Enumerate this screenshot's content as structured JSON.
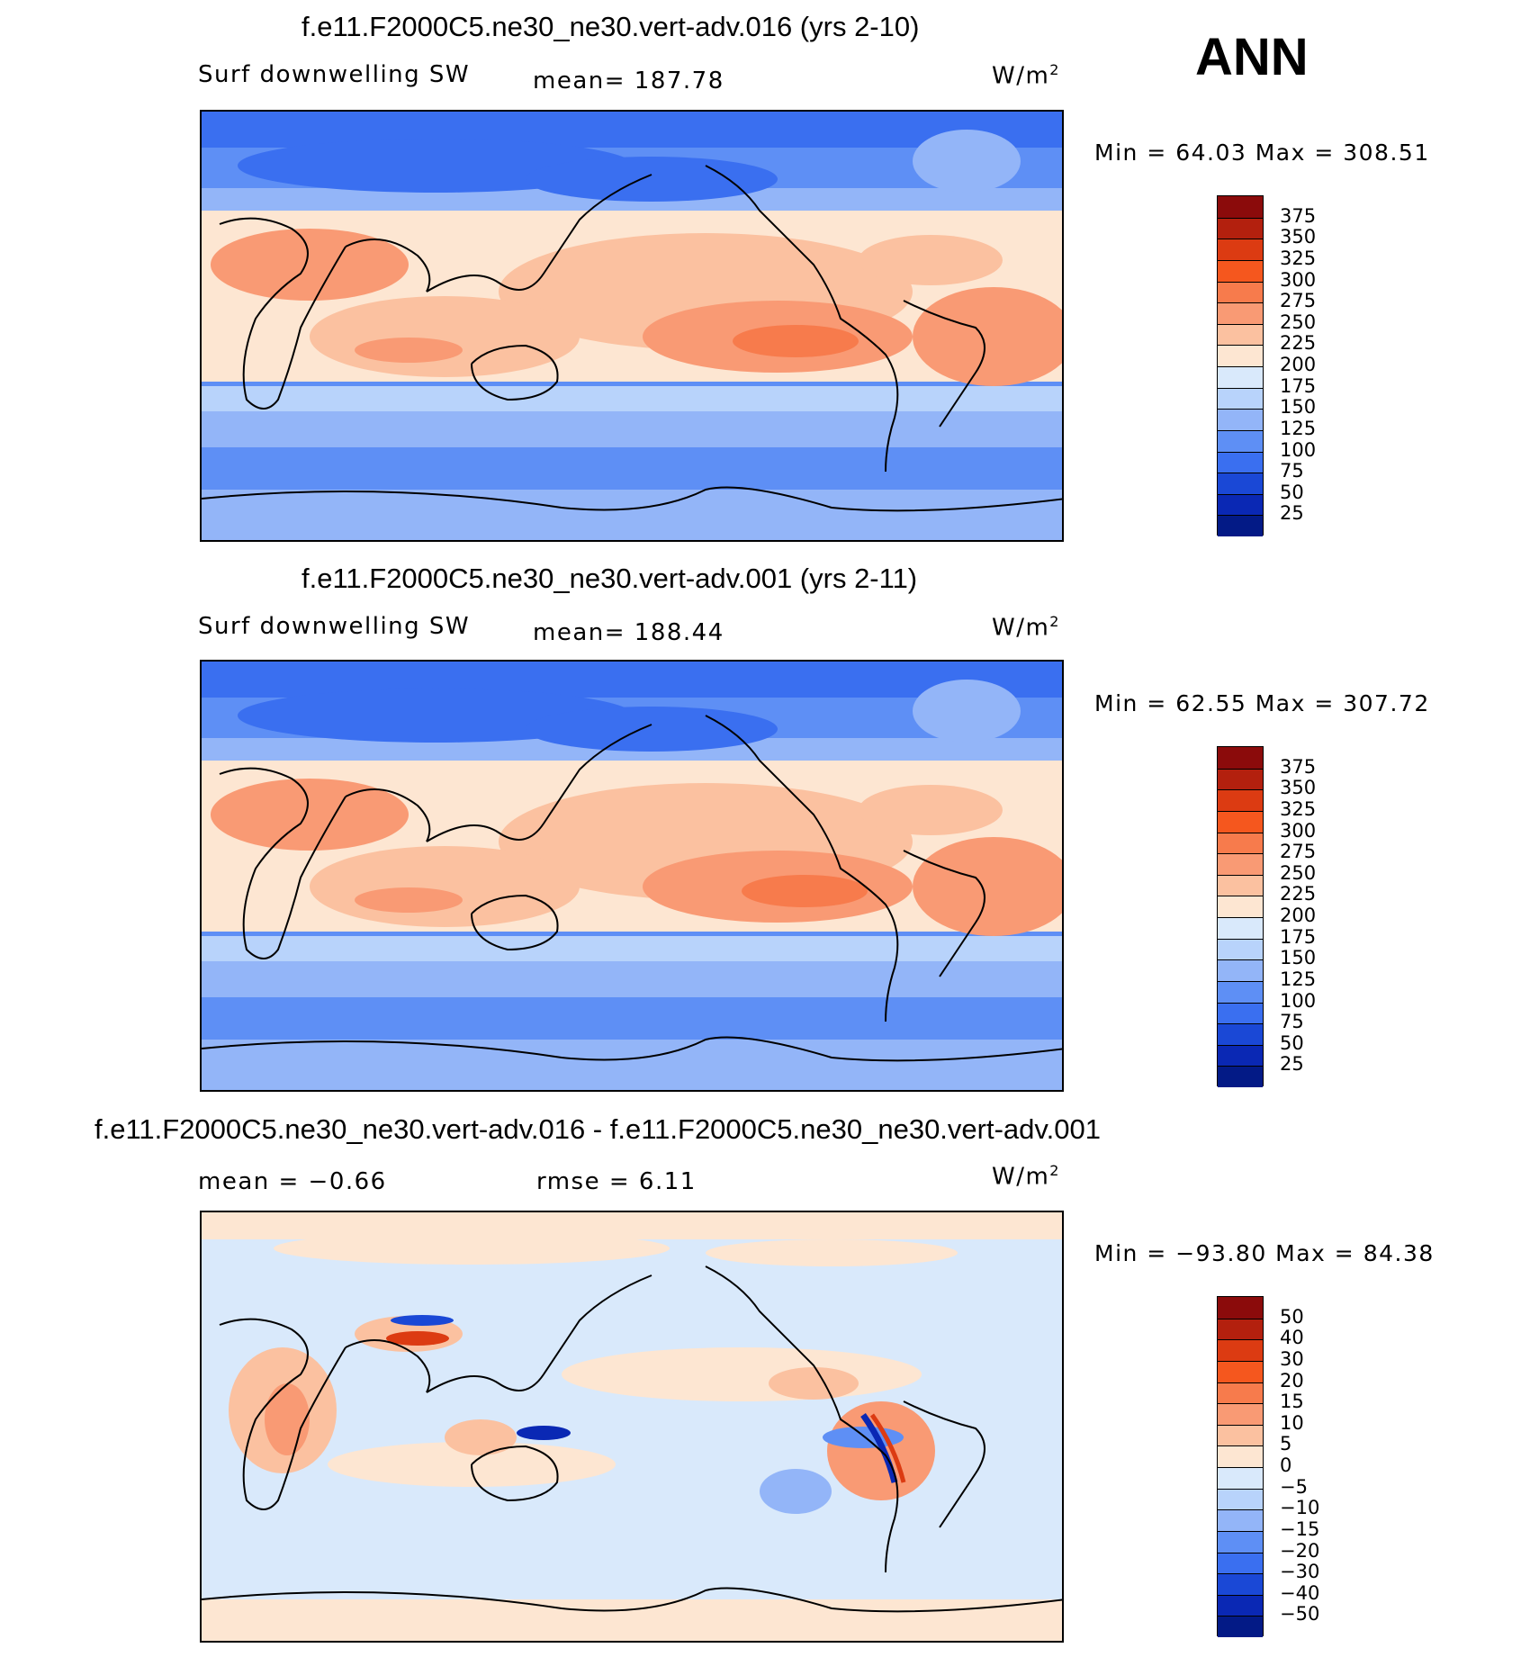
{
  "season": "ANN",
  "panels": [
    {
      "title": "f.e11.F2000C5.ne30_ne30.vert-adv.016 (yrs 2-10)",
      "variable": "Surf downwelling SW",
      "stat1": "mean=  187.78",
      "units": "W/m",
      "units_sup": "2",
      "minmax": "Min =   64.03  Max =  308.51"
    },
    {
      "title": "f.e11.F2000C5.ne30_ne30.vert-adv.001 (yrs 2-11)",
      "variable": "Surf downwelling SW",
      "stat1": "mean=  188.44",
      "units": "W/m",
      "units_sup": "2",
      "minmax": "Min =   62.55  Max =  307.72"
    },
    {
      "title": "f.e11.F2000C5.ne30_ne30.vert-adv.016 - f.e11.F2000C5.ne30_ne30.vert-adv.001",
      "variable": "mean =   −0.66",
      "stat1": "rmse =     6.11",
      "units": "W/m",
      "units_sup": "2",
      "minmax": "Min = −93.80  Max =   84.38"
    }
  ],
  "colorbar_abs": {
    "labels": [
      "375",
      "350",
      "325",
      "300",
      "275",
      "250",
      "225",
      "200",
      "175",
      "150",
      "125",
      "100",
      "75",
      "50",
      "25"
    ],
    "colors": [
      "#8b0b0b",
      "#b3200e",
      "#dc3b12",
      "#f5571e",
      "#f77b4c",
      "#f99a74",
      "#fbc1a0",
      "#fde6d2",
      "#d9e9fb",
      "#b8d3fb",
      "#93b5f8",
      "#5e8ff5",
      "#3a6ff0",
      "#1a48d6",
      "#0a28b4",
      "#031a86"
    ]
  },
  "colorbar_diff": {
    "labels": [
      "50",
      "40",
      "30",
      "20",
      "15",
      "10",
      "5",
      "0",
      "−5",
      "−10",
      "−15",
      "−20",
      "−30",
      "−40",
      "−50"
    ],
    "colors": [
      "#8b0b0b",
      "#b3200e",
      "#dc3b12",
      "#f5571e",
      "#f77b4c",
      "#f99a74",
      "#fbc1a0",
      "#fde6d2",
      "#d9e9fb",
      "#b8d3fb",
      "#93b5f8",
      "#5e8ff5",
      "#3a6ff0",
      "#1a48d6",
      "#0a28b4",
      "#031a86"
    ]
  }
}
